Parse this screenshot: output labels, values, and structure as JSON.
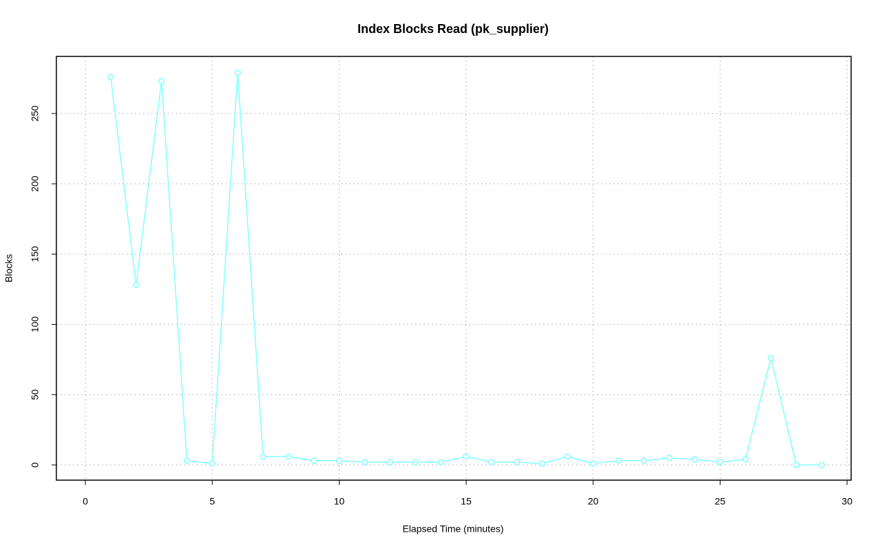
{
  "chart_data": {
    "type": "line",
    "title": "Index Blocks Read (pk_supplier)",
    "x_label": "Elapsed Time (minutes)",
    "y_label": "Blocks",
    "x": [
      1,
      2,
      3,
      4,
      5,
      6,
      7,
      8,
      9,
      10,
      11,
      12,
      13,
      14,
      15,
      16,
      17,
      18,
      19,
      20,
      21,
      22,
      23,
      24,
      25,
      26,
      27,
      28,
      29
    ],
    "series": [
      {
        "color": "#80ffff",
        "values": [
          276,
          128,
          273,
          3,
          1,
          279,
          6,
          6,
          3,
          3,
          2,
          2,
          2,
          2,
          6,
          2,
          2,
          1,
          6,
          1,
          3,
          3,
          5,
          4,
          2,
          4,
          76,
          0,
          0
        ]
      }
    ],
    "xlim": [
      -1.14,
      30.16
    ],
    "ylim": [
      -10.8,
      290.6
    ],
    "xticks": [
      0,
      5,
      10,
      15,
      20,
      25,
      30
    ],
    "yticks": [
      0,
      50,
      100,
      150,
      200,
      250
    ],
    "grid": true
  }
}
